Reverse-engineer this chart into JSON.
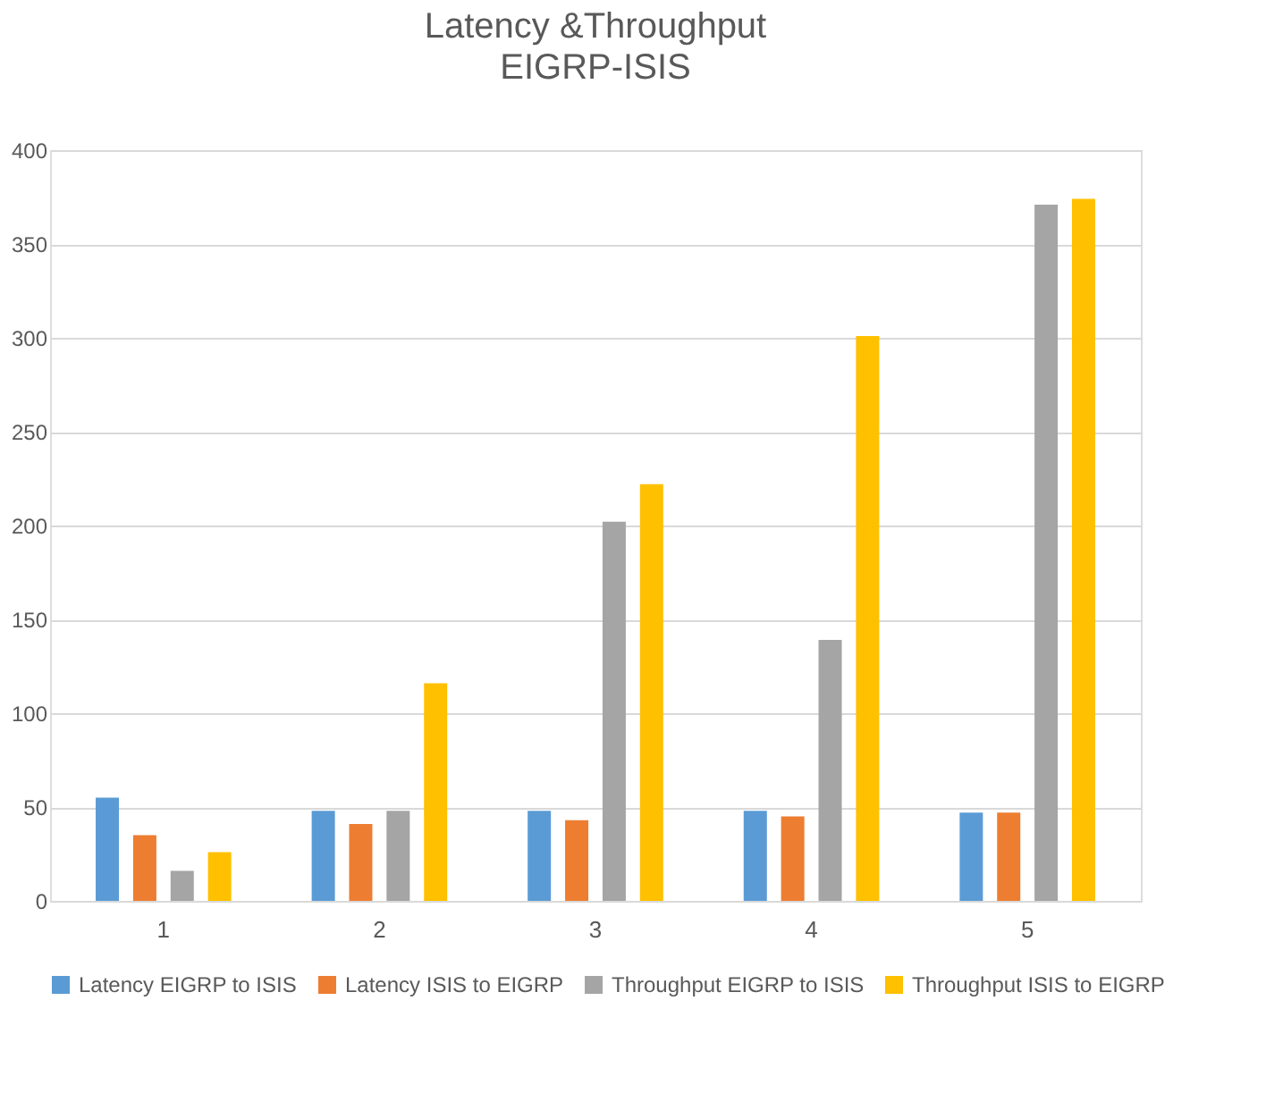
{
  "chart_data": {
    "type": "bar",
    "title": "Latency &Throughput",
    "subtitle": "EIGRP-ISIS",
    "categories": [
      "1",
      "2",
      "3",
      "4",
      "5"
    ],
    "series": [
      {
        "name": "Latency EIGRP to ISIS",
        "color": "#5b9bd5",
        "values": [
          55,
          48,
          48,
          48,
          47
        ]
      },
      {
        "name": "Latency ISIS to EIGRP",
        "color": "#ed7d31",
        "values": [
          35,
          41,
          43,
          45,
          47
        ]
      },
      {
        "name": "Throughput EIGRP to ISIS",
        "color": "#a5a5a5",
        "values": [
          16,
          48,
          202,
          139,
          371
        ]
      },
      {
        "name": "Throughput ISIS to EIGRP",
        "color": "#ffc000",
        "values": [
          26,
          116,
          222,
          301,
          374
        ]
      }
    ],
    "ylim": [
      0,
      400
    ],
    "yticks": [
      0,
      50,
      100,
      150,
      200,
      250,
      300,
      350,
      400
    ],
    "grid": "y",
    "legend": "bottom"
  }
}
